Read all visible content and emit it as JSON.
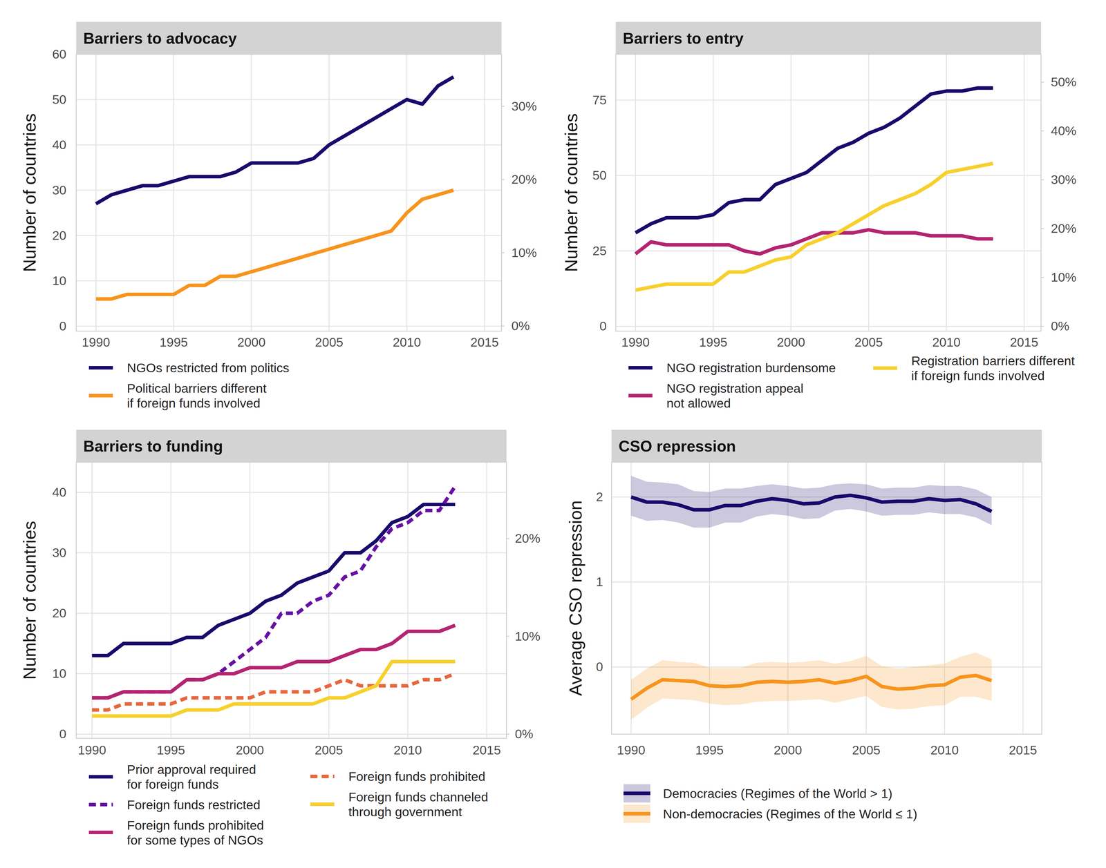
{
  "chart_data": [
    {
      "type": "line",
      "title": "Barriers to advocacy",
      "y_label": "Number of countries",
      "x": [
        1990,
        1991,
        1992,
        1993,
        1994,
        1995,
        1996,
        1997,
        1998,
        1999,
        2000,
        2001,
        2002,
        2003,
        2004,
        2005,
        2006,
        2007,
        2008,
        2009,
        2010,
        2011,
        2012,
        2013
      ],
      "xlim": [
        1988.73,
        2016.09
      ],
      "xticks": [
        1990,
        1995,
        2000,
        2005,
        2010,
        2015
      ],
      "ylim": [
        -1.1,
        60
      ],
      "yticks": [
        0,
        10,
        20,
        30,
        40,
        50,
        60
      ],
      "y2lim": [
        -0.7,
        37.1
      ],
      "y2ticks": [
        {
          "value": 0,
          "label": "0%"
        },
        {
          "value": 10,
          "label": "10%"
        },
        {
          "value": 20,
          "label": "20%"
        },
        {
          "value": 30,
          "label": "30%"
        }
      ],
      "grid": true,
      "legend": "bottom",
      "series": [
        {
          "name": "NGOs restricted from politics",
          "color": "#170a6b",
          "line_style": "solid",
          "values": [
            27,
            29,
            30,
            31,
            31,
            32,
            33,
            33,
            33,
            34,
            36,
            36,
            36,
            36,
            37,
            40,
            42,
            44,
            46,
            48,
            50,
            49,
            53,
            55
          ]
        },
        {
          "name": "Political barriers different\nif foreign funds involved",
          "color": "#f7941d",
          "line_style": "solid",
          "values": [
            6,
            6,
            7,
            7,
            7,
            7,
            9,
            9,
            11,
            11,
            12,
            13,
            14,
            15,
            16,
            17,
            18,
            19,
            20,
            21,
            25,
            28,
            29,
            30
          ]
        }
      ]
    },
    {
      "type": "line",
      "title": "Barriers to entry",
      "y_label": "Number of countries",
      "x": [
        1990,
        1991,
        1992,
        1993,
        1994,
        1995,
        1996,
        1997,
        1998,
        1999,
        2000,
        2001,
        2002,
        2003,
        2004,
        2005,
        2006,
        2007,
        2008,
        2009,
        2010,
        2011,
        2012,
        2013
      ],
      "xlim": [
        1988.73,
        2016.09
      ],
      "xticks": [
        1990,
        1995,
        2000,
        2005,
        2010,
        2015
      ],
      "ylim": [
        -1.6,
        90.2
      ],
      "yticks": [
        0,
        25,
        50,
        75
      ],
      "y2lim": [
        -1.0,
        55.7
      ],
      "y2ticks": [
        {
          "value": 0,
          "label": "0%"
        },
        {
          "value": 10,
          "label": "10%"
        },
        {
          "value": 20,
          "label": "20%"
        },
        {
          "value": 30,
          "label": "30%"
        },
        {
          "value": 40,
          "label": "40%"
        },
        {
          "value": 50,
          "label": "50%"
        }
      ],
      "grid": true,
      "legend": "bottom",
      "series": [
        {
          "name": "NGO registration burdensome",
          "color": "#170a6b",
          "line_style": "solid",
          "values": [
            31,
            34,
            36,
            36,
            36,
            37,
            41,
            42,
            42,
            47,
            49,
            51,
            55,
            59,
            61,
            64,
            66,
            69,
            73,
            77,
            78,
            78,
            79,
            79
          ]
        },
        {
          "name": "NGO registration appeal\nnot allowed",
          "color": "#b42470",
          "line_style": "solid",
          "values": [
            24,
            28,
            27,
            27,
            27,
            27,
            27,
            25,
            24,
            26,
            27,
            29,
            31,
            31,
            31,
            32,
            31,
            31,
            31,
            30,
            30,
            30,
            29,
            29
          ]
        },
        {
          "name": "Registration barriers different\nif foreign funds involved",
          "color": "#f7d02c",
          "line_style": "solid",
          "values": [
            12,
            13,
            14,
            14,
            14,
            14,
            18,
            18,
            20,
            22,
            23,
            27,
            29,
            31,
            34,
            37,
            40,
            42,
            44,
            47,
            51,
            52,
            53,
            54
          ]
        }
      ]
    },
    {
      "type": "line",
      "title": "Barriers to funding",
      "y_label": "Number of countries",
      "x": [
        1990,
        1991,
        1992,
        1993,
        1994,
        1995,
        1996,
        1997,
        1998,
        1999,
        2000,
        2001,
        2002,
        2003,
        2004,
        2005,
        2006,
        2007,
        2008,
        2009,
        2010,
        2011,
        2012,
        2013
      ],
      "xlim": [
        1989.0,
        2016.25
      ],
      "xticks": [
        1990,
        1995,
        2000,
        2005,
        2010,
        2015
      ],
      "ylim": [
        -0.7,
        45
      ],
      "yticks": [
        0,
        10,
        20,
        30,
        40
      ],
      "y2lim": [
        -0.43,
        27.8
      ],
      "y2ticks": [
        {
          "value": 0,
          "label": "0%"
        },
        {
          "value": 10,
          "label": "10%"
        },
        {
          "value": 20,
          "label": "20%"
        }
      ],
      "grid": true,
      "legend": "bottom",
      "series": [
        {
          "name": "Prior approval required\nfor foreign funds",
          "color": "#170a6b",
          "line_style": "solid",
          "values": [
            13,
            13,
            15,
            15,
            15,
            15,
            16,
            16,
            18,
            19,
            20,
            22,
            23,
            25,
            26,
            27,
            30,
            30,
            32,
            35,
            36,
            38,
            38,
            38
          ]
        },
        {
          "name": "Foreign funds restricted",
          "color": "#6610a6",
          "line_style": "dashed",
          "values": [
            6,
            6,
            7,
            7,
            7,
            7,
            9,
            9,
            10,
            12,
            14,
            16,
            20,
            20,
            22,
            23,
            26,
            27,
            31,
            34,
            35,
            37,
            37,
            41
          ]
        },
        {
          "name": "Foreign funds prohibited\nfor some types of NGOs",
          "color": "#b42470",
          "line_style": "solid",
          "values": [
            6,
            6,
            7,
            7,
            7,
            7,
            9,
            9,
            10,
            10,
            11,
            11,
            11,
            12,
            12,
            12,
            13,
            14,
            14,
            15,
            17,
            17,
            17,
            18
          ]
        },
        {
          "name": "Foreign funds prohibited",
          "color": "#e8663d",
          "line_style": "dashed",
          "values": [
            4,
            4,
            5,
            5,
            5,
            5,
            6,
            6,
            6,
            6,
            6,
            7,
            7,
            7,
            7,
            8,
            9,
            8,
            8,
            8,
            8,
            9,
            9,
            10
          ]
        },
        {
          "name": "Foreign funds channeled\nthrough government",
          "color": "#f7d02c",
          "line_style": "solid",
          "values": [
            3,
            3,
            3,
            3,
            3,
            3,
            4,
            4,
            4,
            5,
            5,
            5,
            5,
            5,
            5,
            6,
            6,
            7,
            8,
            12,
            12,
            12,
            12,
            12
          ]
        }
      ]
    },
    {
      "type": "line",
      "title": "CSO repression",
      "y_label": "Average CSO repression",
      "x": [
        1990,
        1991,
        1992,
        1993,
        1994,
        1995,
        1996,
        1997,
        1998,
        1999,
        2000,
        2001,
        2002,
        2003,
        2004,
        2005,
        2006,
        2007,
        2008,
        2009,
        2010,
        2011,
        2012,
        2013
      ],
      "xlim": [
        1988.75,
        2016.2
      ],
      "xticks": [
        1990,
        1995,
        2000,
        2005,
        2010,
        2015
      ],
      "ylim": [
        -0.79,
        2.41
      ],
      "yticks": [
        0,
        1,
        2
      ],
      "grid": true,
      "legend": "bottom",
      "series": [
        {
          "name": "Democracies (Regimes of the World > 1)",
          "color": "#170a6b",
          "line_style": "solid",
          "values": [
            2.0,
            1.94,
            1.94,
            1.91,
            1.85,
            1.85,
            1.9,
            1.9,
            1.95,
            1.98,
            1.96,
            1.92,
            1.93,
            2.0,
            2.02,
            1.99,
            1.94,
            1.95,
            1.95,
            1.98,
            1.96,
            1.97,
            1.92,
            1.83
          ],
          "upper": [
            2.25,
            2.18,
            2.17,
            2.15,
            2.07,
            2.06,
            2.1,
            2.1,
            2.13,
            2.15,
            2.13,
            2.1,
            2.11,
            2.15,
            2.16,
            2.15,
            2.1,
            2.11,
            2.11,
            2.14,
            2.13,
            2.13,
            2.09,
            2.0
          ],
          "lower": [
            1.78,
            1.72,
            1.73,
            1.7,
            1.64,
            1.64,
            1.7,
            1.7,
            1.77,
            1.8,
            1.78,
            1.74,
            1.75,
            1.84,
            1.86,
            1.83,
            1.78,
            1.79,
            1.79,
            1.82,
            1.8,
            1.8,
            1.76,
            1.67
          ]
        },
        {
          "name": "Non-democracies (Regimes of the World ≤ 1)",
          "color": "#f7941d",
          "line_style": "solid",
          "values": [
            -0.38,
            -0.25,
            -0.15,
            -0.16,
            -0.17,
            -0.22,
            -0.23,
            -0.22,
            -0.18,
            -0.17,
            -0.18,
            -0.17,
            -0.15,
            -0.19,
            -0.16,
            -0.11,
            -0.23,
            -0.26,
            -0.25,
            -0.22,
            -0.21,
            -0.12,
            -0.1,
            -0.16
          ],
          "upper": [
            -0.15,
            -0.02,
            0.08,
            0.06,
            0.05,
            -0.01,
            -0.01,
            -0.01,
            0.05,
            0.06,
            0.05,
            0.06,
            0.08,
            0.04,
            0.07,
            0.13,
            0.01,
            -0.02,
            0,
            0.02,
            0.04,
            0.12,
            0.17,
            0.09
          ],
          "lower": [
            -0.62,
            -0.48,
            -0.37,
            -0.38,
            -0.39,
            -0.43,
            -0.45,
            -0.44,
            -0.41,
            -0.4,
            -0.4,
            -0.39,
            -0.38,
            -0.42,
            -0.38,
            -0.34,
            -0.47,
            -0.5,
            -0.49,
            -0.46,
            -0.45,
            -0.35,
            -0.35,
            -0.4
          ]
        }
      ]
    }
  ]
}
